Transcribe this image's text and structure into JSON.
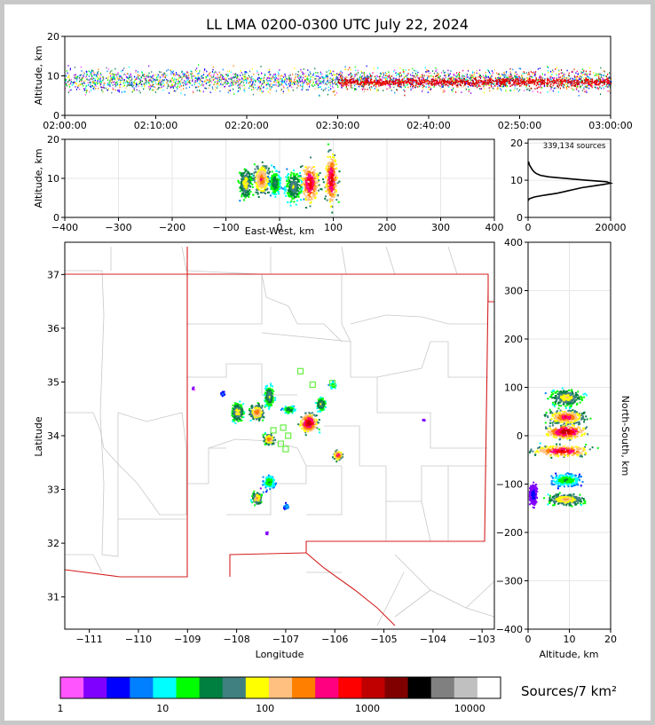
{
  "title": "LL LMA 0200-0300 UTC July 22, 2024",
  "colors": {
    "palette": [
      "#ff55ff",
      "#8000ff",
      "#0000ff",
      "#0080ff",
      "#00ffff",
      "#00ff00",
      "#008040",
      "#408080",
      "#ffff00",
      "#ffc080",
      "#ff8000",
      "#ff0080",
      "#ff0000",
      "#c00000",
      "#800000",
      "#000000",
      "#808080",
      "#c0c0c0",
      "#ffffff"
    ]
  },
  "chart_data": [
    {
      "id": "time-height",
      "type": "scatter",
      "ylabel": "Altitude, km",
      "x_ticks": [
        "02:00:00",
        "02:10:00",
        "02:20:00",
        "02:30:00",
        "02:40:00",
        "02:50:00",
        "03:00:00"
      ],
      "xlim": [
        "02:00:00",
        "03:00:00"
      ],
      "ylim": [
        0,
        20
      ],
      "y_ticks": [
        0,
        10,
        20
      ],
      "grid": false
    },
    {
      "id": "ew-altitude",
      "type": "heatmap",
      "xlabel": "East-West, km",
      "ylabel": "Altitude, km",
      "xlim": [
        -400,
        400
      ],
      "x_ticks": [
        -400,
        -300,
        -200,
        -100,
        0,
        100,
        200,
        300,
        400
      ],
      "ylim": [
        0,
        20
      ],
      "y_ticks": [
        0,
        10,
        20
      ],
      "grid": true,
      "clusters": [
        {
          "x": -65,
          "alt": 9,
          "w": 25,
          "h": 8,
          "level": 9
        },
        {
          "x": -35,
          "alt": 10,
          "w": 35,
          "h": 9,
          "level": 11
        },
        {
          "x": -10,
          "alt": 9,
          "w": 20,
          "h": 7,
          "level": 7
        },
        {
          "x": 25,
          "alt": 8,
          "w": 30,
          "h": 8,
          "level": 8
        },
        {
          "x": 55,
          "alt": 9,
          "w": 35,
          "h": 12,
          "level": 13
        },
        {
          "x": 95,
          "alt": 10,
          "w": 25,
          "h": 15,
          "level": 13
        }
      ]
    },
    {
      "id": "altitude-histogram",
      "type": "line",
      "annotation": "339,134 sources",
      "xlim": [
        0,
        20000
      ],
      "x_ticks": [
        0,
        20000
      ],
      "ylim": [
        0,
        21
      ],
      "y_ticks": [
        0,
        10,
        20
      ],
      "x": [
        0,
        300,
        1500,
        4000,
        7000,
        9000,
        11000,
        13000,
        16000,
        18500,
        20000,
        19000,
        14000,
        10000,
        5000,
        3000,
        2000,
        1500,
        1200,
        900,
        700,
        500,
        300,
        100
      ],
      "alt": [
        4.5,
        5,
        5.5,
        6,
        6.5,
        7,
        7.5,
        8,
        8.5,
        8.9,
        9.2,
        9.6,
        10.0,
        10.4,
        10.9,
        11.3,
        11.8,
        12.2,
        12.6,
        13.0,
        13.4,
        13.8,
        14.2,
        15
      ]
    },
    {
      "id": "plan-view",
      "type": "heatmap",
      "xlabel": "Longitude",
      "ylabel": "Latitude",
      "xlim": [
        -111.5,
        -102.75
      ],
      "x_ticks": [
        -111,
        -110,
        -109,
        -108,
        -107,
        -106,
        -105,
        -104,
        -103
      ],
      "ylim": [
        30.4,
        37.6
      ],
      "y_ticks": [
        31,
        32,
        33,
        34,
        35,
        36,
        37
      ],
      "stations": [
        {
          "lon": -106.7,
          "lat": 35.2
        },
        {
          "lon": -106.45,
          "lat": 34.95
        },
        {
          "lon": -106.05,
          "lat": 34.98
        },
        {
          "lon": -107.25,
          "lat": 34.1
        },
        {
          "lon": -107.05,
          "lat": 34.15
        },
        {
          "lon": -106.95,
          "lat": 34.0
        },
        {
          "lon": -107.1,
          "lat": 33.85
        },
        {
          "lon": -107.0,
          "lat": 33.75
        }
      ],
      "clusters": [
        {
          "lon": -108.0,
          "lat": 34.45,
          "w": 0.25,
          "h": 0.35,
          "level": 9
        },
        {
          "lon": -107.6,
          "lat": 34.45,
          "w": 0.3,
          "h": 0.3,
          "level": 11
        },
        {
          "lon": -107.35,
          "lat": 34.75,
          "w": 0.2,
          "h": 0.4,
          "level": 8
        },
        {
          "lon": -107.35,
          "lat": 33.95,
          "w": 0.25,
          "h": 0.2,
          "level": 11
        },
        {
          "lon": -106.95,
          "lat": 34.5,
          "w": 0.25,
          "h": 0.15,
          "level": 7
        },
        {
          "lon": -106.55,
          "lat": 34.25,
          "w": 0.35,
          "h": 0.35,
          "level": 14
        },
        {
          "lon": -106.3,
          "lat": 34.6,
          "w": 0.2,
          "h": 0.25,
          "level": 8
        },
        {
          "lon": -106.05,
          "lat": 34.95,
          "w": 0.15,
          "h": 0.15,
          "level": 6
        },
        {
          "lon": -105.95,
          "lat": 33.65,
          "w": 0.2,
          "h": 0.2,
          "level": 12
        },
        {
          "lon": -107.35,
          "lat": 33.15,
          "w": 0.25,
          "h": 0.25,
          "level": 6
        },
        {
          "lon": -107.6,
          "lat": 32.85,
          "w": 0.2,
          "h": 0.25,
          "level": 10
        },
        {
          "lon": -107.0,
          "lat": 32.7,
          "w": 0.12,
          "h": 0.12,
          "level": 4
        },
        {
          "lon": -108.9,
          "lat": 34.9,
          "w": 0.05,
          "h": 0.05,
          "level": 1
        },
        {
          "lon": -108.3,
          "lat": 34.8,
          "w": 0.1,
          "h": 0.1,
          "level": 3
        },
        {
          "lon": -107.4,
          "lat": 32.2,
          "w": 0.05,
          "h": 0.05,
          "level": 1
        },
        {
          "lon": -104.2,
          "lat": 34.3,
          "w": 0.05,
          "h": 0.05,
          "level": 1
        }
      ]
    },
    {
      "id": "altitude-ns",
      "type": "heatmap",
      "xlabel": "Altitude, km",
      "ylabel": "North-South, km",
      "xlim": [
        0,
        20
      ],
      "x_ticks": [
        0,
        10,
        20
      ],
      "ylim": [
        -400,
        400
      ],
      "y_ticks": [
        -400,
        -300,
        -200,
        -100,
        0,
        100,
        200,
        300,
        400
      ],
      "grid": true,
      "clusters": [
        {
          "alt": 9,
          "ns": 80,
          "w": 8,
          "h": 35,
          "level": 9
        },
        {
          "alt": 9,
          "ns": 40,
          "w": 9,
          "h": 30,
          "level": 12
        },
        {
          "alt": 9,
          "ns": 10,
          "w": 10,
          "h": 30,
          "level": 14
        },
        {
          "alt": 8,
          "ns": -30,
          "w": 14,
          "h": 25,
          "level": 13
        },
        {
          "alt": 9,
          "ns": -90,
          "w": 7,
          "h": 25,
          "level": 6
        },
        {
          "alt": 9,
          "ns": -130,
          "w": 9,
          "h": 25,
          "level": 10
        },
        {
          "alt": 1,
          "ns": -120,
          "w": 2,
          "h": 40,
          "level": 2
        }
      ]
    },
    {
      "id": "colorbar",
      "type": "heatmap",
      "label": "Sources/7 km²",
      "scale": "log",
      "ticks": [
        "1",
        "10",
        "100",
        "1000",
        "10000"
      ]
    }
  ]
}
